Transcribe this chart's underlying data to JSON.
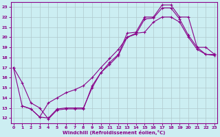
{
  "xlabel": "Windchill (Refroidissement éolien,°C)",
  "xlim": [
    -0.3,
    23.3
  ],
  "ylim": [
    11.5,
    23.5
  ],
  "xticks": [
    0,
    1,
    2,
    3,
    4,
    5,
    6,
    7,
    8,
    9,
    10,
    11,
    12,
    13,
    14,
    15,
    16,
    17,
    18,
    19,
    20,
    21,
    22,
    23
  ],
  "yticks": [
    12,
    13,
    14,
    15,
    16,
    17,
    18,
    19,
    20,
    21,
    22,
    23
  ],
  "bg_color": "#cceef2",
  "line_color": "#880088",
  "grid_color": "#b0c8cc",
  "curves": [
    {
      "x": [
        0,
        1,
        2,
        3,
        4,
        5,
        6,
        7,
        8,
        9,
        10,
        11,
        12,
        13,
        14,
        15,
        16,
        17,
        18,
        19,
        20,
        21,
        22,
        23
      ],
      "y": [
        17,
        13.2,
        12.9,
        12.1,
        12.0,
        12.9,
        13.0,
        13.0,
        13.0,
        15.0,
        16.5,
        17.3,
        18.2,
        20.0,
        20.3,
        21.8,
        21.9,
        22.9,
        22.9,
        21.8,
        20.2,
        19.0,
        18.3,
        18.3
      ]
    },
    {
      "x": [
        0,
        1,
        2,
        3,
        4,
        5,
        6,
        7,
        8,
        9,
        10,
        11,
        12,
        13,
        14,
        15,
        16,
        17,
        18,
        19,
        20,
        21,
        22,
        23
      ],
      "y": [
        17,
        15.5,
        13.5,
        13.0,
        11.9,
        12.8,
        12.9,
        12.9,
        12.9,
        15.2,
        16.5,
        17.5,
        18.3,
        20.4,
        20.5,
        22.0,
        22.0,
        23.2,
        23.2,
        22.0,
        22.0,
        19.0,
        19.0,
        18.3
      ]
    },
    {
      "x": [
        1,
        2,
        3,
        4,
        5,
        6,
        7,
        8,
        9,
        10,
        11,
        12,
        13,
        14,
        15,
        16,
        17,
        18,
        19,
        20,
        21,
        22,
        23
      ],
      "y": [
        13.2,
        12.9,
        12.1,
        13.5,
        14.0,
        14.5,
        14.8,
        15.2,
        16.0,
        17.0,
        17.9,
        18.8,
        20.0,
        20.4,
        20.5,
        21.5,
        22.0,
        22.0,
        21.5,
        20.0,
        18.8,
        18.3,
        18.2
      ]
    }
  ]
}
